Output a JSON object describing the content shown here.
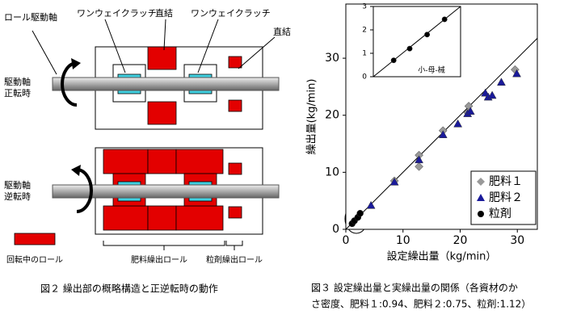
{
  "figure2": {
    "roll_shaft": "ロール駆動軸",
    "one_way_clutch_left": "ワンウェイクラッチ",
    "direct_center": "直結",
    "one_way_clutch_right": "ワンウェイクラッチ",
    "direct_right": "直結",
    "forward": [
      "駆動軸",
      "正転時"
    ],
    "reverse": [
      "駆動軸",
      "逆転時"
    ],
    "legend_rotating": "回転中のロール",
    "fertilizer_roll": "肥料繰出ロール",
    "granule_roll": "粒剤繰出ロール",
    "caption": "図２ 繰出部の概略構造と正逆転時の動作"
  },
  "figure3_caption": [
    "図３ 設定繰出量と実繰出量の関係（各資材のか",
    "さ密度、肥料１:0.94、肥料２:0.75、粒剤:1.12）"
  ],
  "chart_data": [
    {
      "type": "scatter",
      "x_label": "設定繰出量（kg/min）",
      "y_label": "繰出量(kg/min)",
      "xlim": [
        0,
        33.5
      ],
      "ylim": [
        0,
        39.5
      ],
      "xticks": [
        0,
        10,
        20,
        30
      ],
      "yticks": [
        0,
        10,
        20,
        30
      ],
      "legend": "lower right",
      "series": [
        {
          "name": "肥料１",
          "color": "#999999",
          "marker": "diamond",
          "x": [
            8.5,
            12.8,
            12.8,
            17,
            21.5,
            21.3,
            29.6
          ],
          "values": [
            8.5,
            13,
            11,
            17.3,
            21.6,
            20.5,
            28
          ]
        },
        {
          "name": "肥料２",
          "color": "#1a1a9a",
          "marker": "triangle",
          "x": [
            4.4,
            8.5,
            12.8,
            17,
            19.6,
            21.3,
            21.8,
            24.4,
            24.9,
            25.6,
            27.2,
            29.9
          ],
          "values": [
            4.2,
            8.3,
            12.2,
            16.6,
            18.5,
            20.3,
            20.7,
            23.9,
            23.2,
            23.5,
            25.8,
            27.3
          ]
        },
        {
          "name": "粒剤",
          "color": "#000000",
          "marker": "circle",
          "x": [
            1.1,
            1.5,
            2.1,
            2.5
          ],
          "values": [
            1.0,
            1.5,
            2.1,
            2.8
          ]
        }
      ]
    },
    {
      "type": "scatter",
      "x_label": "小-母-械",
      "xlim": [
        0,
        3
      ],
      "ylim": [
        0,
        3
      ],
      "yticks": [
        0,
        1,
        2,
        3
      ],
      "series": [
        {
          "name": "粒剤",
          "color": "#000000",
          "marker": "circle",
          "x": [
            0.7,
            1.25,
            1.85,
            2.45
          ],
          "values": [
            0.7,
            1.2,
            1.8,
            2.45
          ]
        }
      ]
    }
  ]
}
